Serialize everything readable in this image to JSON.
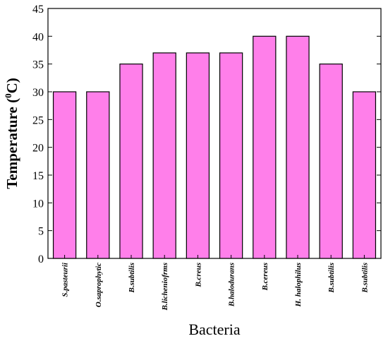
{
  "chart_data": {
    "type": "bar",
    "categories": [
      "S.pasteurii",
      "O.saprophytic",
      "B.subtilis",
      "B.licheniofrms",
      "B.creus",
      "B.halodurans",
      "B.cereus",
      "H. halophilus",
      "B.subtilis",
      "B.subtilis"
    ],
    "values": [
      30,
      30,
      35,
      37,
      37,
      37,
      40,
      40,
      35,
      30
    ],
    "title": "",
    "xlabel": "Bacteria",
    "ylabel_main": "Temperature (",
    "ylabel_sup": "0",
    "ylabel_end": "C)",
    "ylim": [
      0,
      45
    ],
    "yticks": [
      0,
      5,
      10,
      15,
      20,
      25,
      30,
      35,
      40,
      45
    ],
    "grid": false,
    "legend": "none",
    "bar_color": "#ff7fea",
    "bar_stroke": "#000000"
  }
}
